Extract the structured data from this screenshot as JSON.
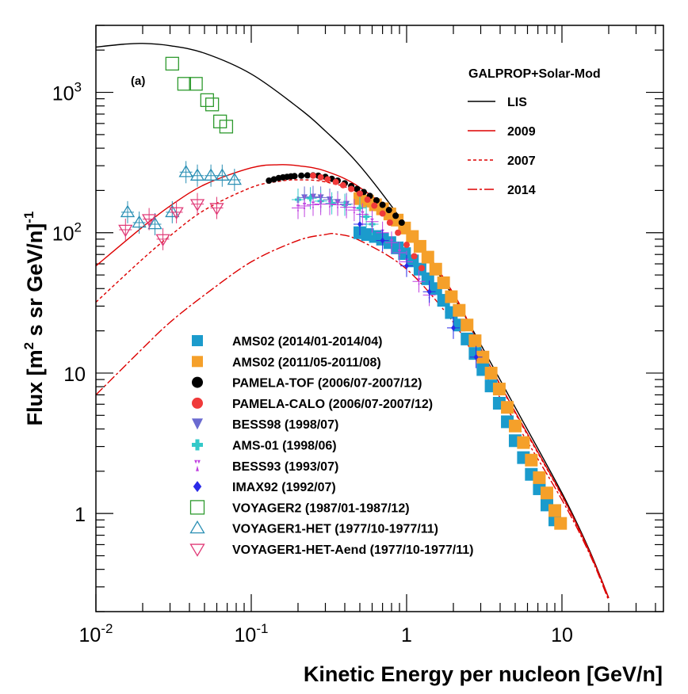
{
  "chart_data": {
    "type": "scatter",
    "panel_label": "(a)",
    "xlabel": "Kinetic Energy per nucleon [GeV/n]",
    "ylabel_parts": [
      "Flux [m",
      "2",
      " s sr GeV/n]",
      "-1"
    ],
    "xscale": "log",
    "yscale": "log",
    "xlim": [
      0.01,
      45
    ],
    "ylim": [
      0.2,
      3000
    ],
    "x_ticks": [
      {
        "value": 0.01,
        "base": "10",
        "exp": "-2"
      },
      {
        "value": 0.1,
        "base": "10",
        "exp": "-1"
      },
      {
        "value": 1,
        "base": "1",
        "exp": ""
      },
      {
        "value": 10,
        "base": "10",
        "exp": ""
      }
    ],
    "y_ticks": [
      {
        "value": 1,
        "base": "1",
        "exp": ""
      },
      {
        "value": 10,
        "base": "10",
        "exp": ""
      },
      {
        "value": 100,
        "base": "10",
        "exp": "2"
      },
      {
        "value": 1000,
        "base": "10",
        "exp": "3"
      }
    ],
    "model_legend_title": "GALPROP+Solar-Mod",
    "models": [
      {
        "name": "LIS",
        "color": "#000000",
        "dash": "none",
        "x": [
          0.01,
          0.015,
          0.02,
          0.03,
          0.05,
          0.1,
          0.2,
          0.3,
          0.5,
          1,
          2,
          3,
          5,
          10,
          15,
          20
        ],
        "y": [
          2100,
          2200,
          2230,
          2150,
          1900,
          1350,
          780,
          530,
          300,
          110,
          35,
          16,
          5.7,
          1.4,
          0.55,
          0.25
        ]
      },
      {
        "name": "2009",
        "color": "#dd0000",
        "dash": "none",
        "x": [
          0.01,
          0.02,
          0.03,
          0.05,
          0.1,
          0.15,
          0.2,
          0.3,
          0.5,
          1,
          2,
          3,
          5,
          10,
          15,
          20
        ],
        "y": [
          58,
          110,
          155,
          220,
          290,
          305,
          300,
          275,
          210,
          110,
          37,
          15,
          5.3,
          1.35,
          0.54,
          0.25
        ]
      },
      {
        "name": "2007",
        "color": "#dd0000",
        "dash": "4,3",
        "x": [
          0.01,
          0.02,
          0.03,
          0.05,
          0.1,
          0.15,
          0.2,
          0.3,
          0.5,
          1,
          2,
          3,
          5,
          10,
          15,
          20
        ],
        "y": [
          32,
          65,
          95,
          145,
          210,
          232,
          238,
          230,
          190,
          105,
          36,
          15,
          5.2,
          1.33,
          0.53,
          0.25
        ]
      },
      {
        "name": "2014",
        "color": "#dd0000",
        "dash": "12,3,3,3",
        "x": [
          0.01,
          0.02,
          0.03,
          0.05,
          0.1,
          0.2,
          0.3,
          0.35,
          0.5,
          1,
          2,
          3,
          5,
          10,
          15,
          20
        ],
        "y": [
          7,
          15,
          23,
          36,
          62,
          88,
          97,
          98,
          88,
          55,
          23,
          11,
          4.5,
          1.25,
          0.52,
          0.24
        ]
      }
    ],
    "series": [
      {
        "name": "AMS02 (2014/01-2014/04)",
        "marker": "square",
        "color": "#1b9bcc",
        "size": 16,
        "x": [
          0.5,
          0.56,
          0.63,
          0.7,
          0.78,
          0.87,
          0.97,
          1.09,
          1.22,
          1.37,
          1.54,
          1.73,
          1.94,
          2.18,
          2.45,
          2.76,
          3.1,
          3.5,
          3.95,
          4.45,
          5.0,
          5.65,
          6.35,
          7.15,
          8.0,
          9.0
        ],
        "y": [
          100,
          97,
          94,
          90,
          85,
          78,
          71,
          63,
          55,
          47,
          40,
          33,
          27,
          22,
          17.5,
          13.8,
          10.6,
          8.1,
          6.1,
          4.5,
          3.3,
          2.5,
          1.9,
          1.5,
          1.15,
          0.9
        ]
      },
      {
        "name": "AMS02 (2011/05-2011/08)",
        "marker": "square",
        "color": "#f5a02a",
        "size": 16,
        "x": [
          0.5,
          0.56,
          0.63,
          0.7,
          0.78,
          0.87,
          0.97,
          1.09,
          1.22,
          1.37,
          1.54,
          1.73,
          1.94,
          2.18,
          2.45,
          2.76,
          3.1,
          3.5,
          3.95,
          4.45,
          5.0,
          5.65,
          6.35,
          7.15,
          8.0,
          9.0,
          9.8
        ],
        "y": [
          175,
          168,
          158,
          148,
          136,
          123,
          108,
          94,
          80,
          67,
          55,
          44,
          35,
          28,
          22,
          17,
          13,
          10,
          7.7,
          5.7,
          4.2,
          3.2,
          2.4,
          1.8,
          1.4,
          1.05,
          0.85
        ]
      },
      {
        "name": "PAMELA-TOF (2006/07-2007/12)",
        "marker": "circle",
        "color": "#000000",
        "size": 8,
        "x": [
          0.13,
          0.14,
          0.15,
          0.16,
          0.17,
          0.18,
          0.19,
          0.21,
          0.23,
          0.25,
          0.27,
          0.3,
          0.33,
          0.36,
          0.4,
          0.44,
          0.48,
          0.53,
          0.58,
          0.64,
          0.7,
          0.77,
          0.85,
          0.93
        ],
        "y": [
          235,
          240,
          245,
          248,
          250,
          252,
          253,
          255,
          256,
          256,
          255,
          250,
          242,
          235,
          225,
          215,
          205,
          195,
          183,
          170,
          158,
          145,
          132,
          118
        ]
      },
      {
        "name": "PAMELA-CALO (2006/07-2007/12)",
        "marker": "circle",
        "color": "#f03a3a",
        "size": 8,
        "x": [
          0.25,
          0.28,
          0.31,
          0.35,
          0.39,
          0.44,
          0.5,
          0.56,
          0.62,
          0.7,
          0.78,
          0.88,
          1.0,
          1.12,
          1.25
        ],
        "y": [
          255,
          248,
          240,
          230,
          218,
          205,
          190,
          172,
          156,
          137,
          118,
          100,
          82,
          68,
          56
        ]
      },
      {
        "name": "BESS98 (1998/07)",
        "marker": "triangle-down",
        "color": "#6a6ad0",
        "size": 8,
        "x": [
          0.22,
          0.25,
          0.28,
          0.32,
          0.36,
          0.41
        ],
        "y": [
          178,
          180,
          178,
          172,
          165,
          160
        ]
      },
      {
        "name": "AMS-01 (1998/06)",
        "marker": "cross",
        "color": "#33c9c9",
        "size": 8,
        "x": [
          0.2,
          0.24,
          0.28,
          0.33,
          0.4,
          0.5,
          0.55,
          0.6
        ],
        "y": [
          172,
          176,
          168,
          162,
          158,
          150,
          130,
          115
        ]
      },
      {
        "name": "BESS93 (1993/07)",
        "marker": "triangle-pair",
        "color": "#c040e0",
        "size": 8,
        "x": [
          0.2,
          0.22,
          0.25,
          0.28,
          0.32,
          0.36,
          0.41,
          0.46,
          0.52,
          0.6,
          0.7,
          0.8,
          0.9,
          1.0,
          1.2,
          1.4
        ],
        "y": [
          150,
          155,
          158,
          160,
          160,
          158,
          152,
          145,
          135,
          120,
          100,
          85,
          72,
          62,
          45,
          36
        ]
      },
      {
        "name": "IMAX92 (1992/07)",
        "marker": "diamond",
        "color": "#2a2ae8",
        "size": 8,
        "x": [
          0.5,
          0.7,
          1.0,
          1.4,
          2.0,
          2.8
        ],
        "y": [
          115,
          88,
          58,
          38,
          21,
          13
        ]
      },
      {
        "name": "VOYAGER2 (1987/01-1987/12)",
        "marker": "open-square",
        "color": "#2e9a2e",
        "size": 16,
        "x": [
          0.031,
          0.037,
          0.044,
          0.052,
          0.056,
          0.063,
          0.069
        ],
        "y": [
          1600,
          1150,
          1150,
          880,
          820,
          620,
          570
        ]
      },
      {
        "name": "VOYAGER1-HET (1977/10-1977/11)",
        "marker": "open-triangle-up",
        "color": "#2a8fb4",
        "size": 16,
        "x": [
          0.016,
          0.019,
          0.024,
          0.031,
          0.038,
          0.045,
          0.055,
          0.065,
          0.078
        ],
        "y": [
          140,
          118,
          115,
          140,
          270,
          255,
          255,
          255,
          238
        ]
      },
      {
        "name": "VOYAGER1-HET-Aend (1977/10-1977/11)",
        "marker": "open-triangle-down",
        "color": "#e03a77",
        "size": 16,
        "x": [
          0.0155,
          0.022,
          0.027,
          0.033,
          0.045,
          0.06
        ],
        "y": [
          105,
          125,
          90,
          140,
          160,
          150
        ]
      }
    ]
  }
}
